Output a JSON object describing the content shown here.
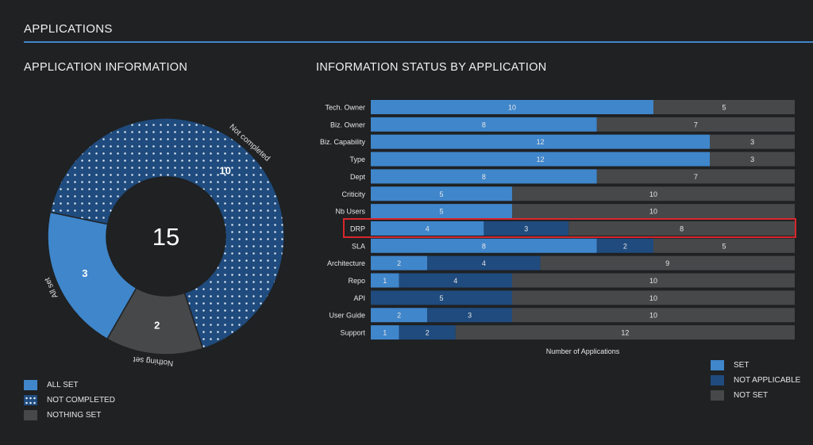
{
  "header": {
    "title": "APPLICATIONS"
  },
  "left_panel": {
    "title": "APPLICATION INFORMATION"
  },
  "right_panel": {
    "title": "INFORMATION STATUS BY APPLICATION"
  },
  "colors": {
    "set": "#3f86cb",
    "not_applicable": "#1f4b7e",
    "not_set": "#474849",
    "highlight": "#d8262c"
  },
  "chart_data": [
    {
      "type": "pie",
      "donut": true,
      "center_label": "15",
      "slices": [
        {
          "name": "Not completed",
          "value": 10,
          "label": "Not completed",
          "pattern": "dots"
        },
        {
          "name": "Nothing set",
          "value": 2,
          "label": "Nothing set"
        },
        {
          "name": "All set",
          "value": 3,
          "label": "All set"
        }
      ],
      "legend": [
        "ALL SET",
        "NOT COMPLETED",
        "NOTHING SET"
      ],
      "legend_placement": "bottom-left"
    },
    {
      "type": "bar",
      "orientation": "horizontal",
      "stacked": true,
      "categories": [
        "Tech. Owner",
        "Biz. Owner",
        "Biz. Capability",
        "Type",
        "Dept",
        "Criticity",
        "Nb Users",
        "DRP",
        "SLA",
        "Architecture",
        "Repo",
        "API",
        "User Guide",
        "Support"
      ],
      "series": [
        {
          "name": "SET",
          "values": [
            10,
            8,
            12,
            12,
            8,
            5,
            5,
            4,
            8,
            2,
            1,
            0,
            2,
            1
          ]
        },
        {
          "name": "NOT APPLICABLE",
          "values": [
            0,
            0,
            0,
            0,
            0,
            0,
            0,
            3,
            2,
            4,
            4,
            5,
            3,
            2
          ]
        },
        {
          "name": "NOT SET",
          "values": [
            5,
            7,
            3,
            3,
            7,
            10,
            10,
            8,
            5,
            9,
            10,
            10,
            10,
            12
          ]
        }
      ],
      "xlabel": "Number of Applications",
      "xlim": [
        0,
        15
      ],
      "highlighted_category": "DRP",
      "legend_placement": "bottom-right"
    }
  ]
}
